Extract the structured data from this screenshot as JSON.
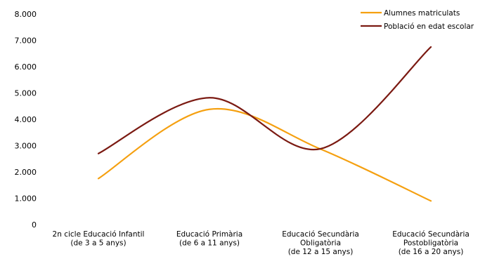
{
  "chart_data": {
    "type": "line",
    "categories": [
      [
        "2n cicle Educació Infantil",
        "(de 3 a 5 anys)"
      ],
      [
        "Educació Primària",
        "(de 6 a 11 anys)"
      ],
      [
        "Educació Secundària",
        "Obligatòria",
        "(de 12 a 15 anys)"
      ],
      [
        "Educació Secundària",
        "Postobligatòria",
        "(de 16 a 20 anys)"
      ]
    ],
    "y_ticks": [
      "0",
      "1.000",
      "2.000",
      "3.000",
      "4.000",
      "5.000",
      "6.000",
      "7.000",
      "8.000"
    ],
    "ylim": [
      0,
      8000
    ],
    "grid": false,
    "legend_position": "top-right",
    "smooth": true,
    "series": [
      {
        "name": "Alumnes matriculats",
        "color": "#f5a010",
        "values": [
          1750,
          4380,
          2870,
          900
        ]
      },
      {
        "name": "Població en edat escolar",
        "color": "#7b1a12",
        "values": [
          2700,
          4820,
          2880,
          6750
        ]
      }
    ]
  }
}
